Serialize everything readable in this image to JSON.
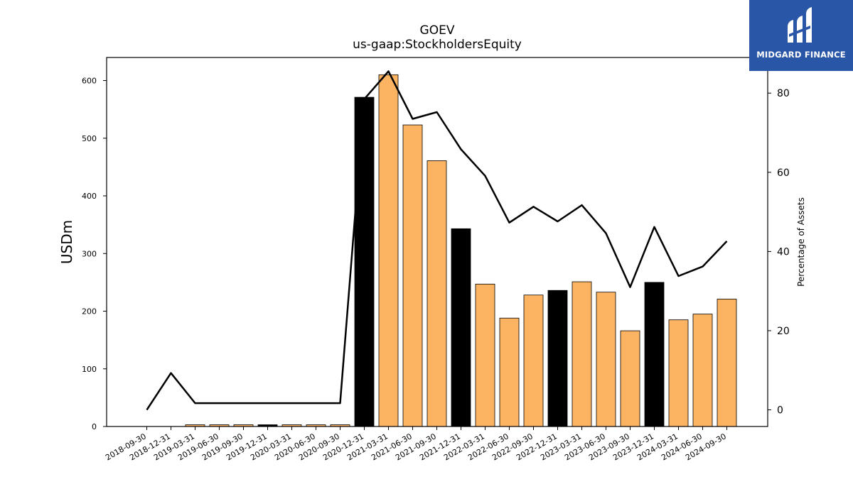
{
  "chart_data": {
    "type": "bar",
    "title": "GOEV",
    "subtitle": "us-gaap:StockholdersEquity",
    "ylabel": "USDm",
    "y2label": "Percentage of Assets",
    "ylim": [
      0,
      640
    ],
    "y2lim": [
      -4.2,
      89
    ],
    "yticks": [
      0,
      100,
      200,
      300,
      400,
      500,
      600
    ],
    "y2ticks": [
      0,
      20,
      40,
      60,
      80
    ],
    "categories": [
      "2018-09-30",
      "2018-12-31",
      "2019-03-31",
      "2019-06-30",
      "2019-09-30",
      "2019-12-31",
      "2020-03-31",
      "2020-06-30",
      "2020-09-30",
      "2020-12-31",
      "2021-03-31",
      "2021-06-30",
      "2021-09-30",
      "2021-12-31",
      "2022-03-31",
      "2022-06-30",
      "2022-09-30",
      "2022-12-31",
      "2023-03-31",
      "2023-06-30",
      "2023-09-30",
      "2023-12-31",
      "2024-03-31",
      "2024-06-30",
      "2024-09-30"
    ],
    "series": [
      {
        "type": "bar",
        "values": [
          null,
          null,
          3,
          3,
          3,
          3,
          3,
          3,
          3,
          571,
          610,
          523,
          461,
          343,
          247,
          188,
          228,
          236,
          251,
          233,
          166,
          250,
          185,
          195,
          221
        ],
        "highlight": [
          false,
          false,
          false,
          false,
          false,
          true,
          false,
          false,
          false,
          true,
          false,
          false,
          false,
          true,
          false,
          false,
          false,
          true,
          false,
          false,
          false,
          true,
          false,
          false,
          false
        ]
      },
      {
        "type": "line",
        "axis": "right",
        "values": [
          0,
          9.3,
          1.7,
          1.7,
          1.7,
          1.7,
          1.7,
          1.7,
          1.7,
          78.5,
          85.5,
          73.5,
          75.2,
          65.8,
          59.1,
          47.3,
          51.3,
          47.6,
          51.7,
          44.6,
          31.0,
          46.2,
          33.8,
          36.2,
          42.6
        ]
      }
    ],
    "colors": {
      "bar": "#fdb462",
      "bar_highlight": "#000000",
      "line": "#000000"
    }
  },
  "logo": {
    "name": "MIDGARD FINANCE",
    "icon": "midgard-logo-icon"
  }
}
